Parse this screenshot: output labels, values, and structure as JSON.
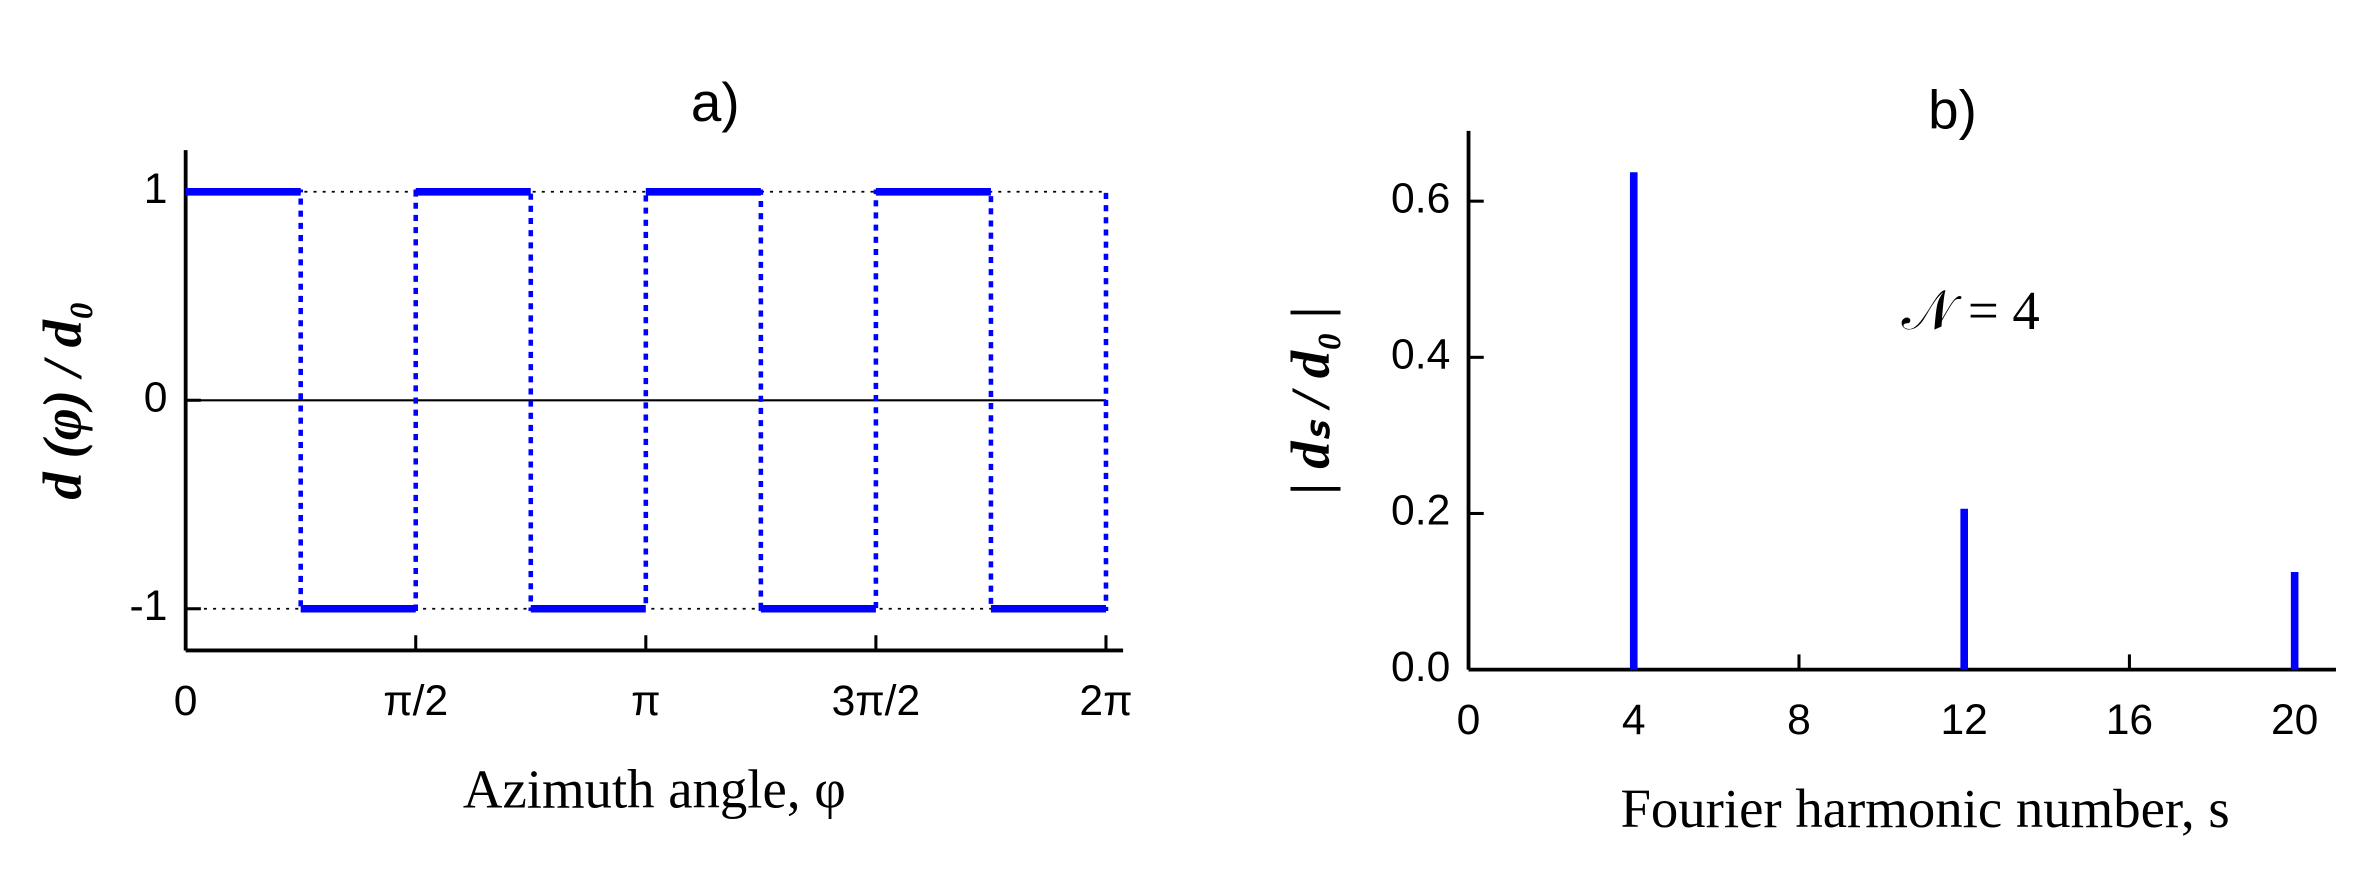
{
  "chart_data": [
    {
      "type": "line",
      "title": "a)",
      "xlabel": "Azimuth angle, φ",
      "ylabel": "d (φ) / d₀",
      "x": [
        0,
        0.7854,
        0.7854,
        1.5708,
        1.5708,
        2.3562,
        2.3562,
        3.1416,
        3.1416,
        3.927,
        3.927,
        4.7124,
        4.7124,
        5.4978,
        5.4978,
        6.2832,
        6.2832
      ],
      "series": [
        {
          "color": "#0000ff",
          "values": [
            1,
            1,
            -1,
            -1,
            1,
            1,
            -1,
            -1,
            1,
            1,
            -1,
            -1,
            1,
            1,
            -1,
            -1,
            1
          ]
        }
      ],
      "xlim": [
        0,
        6.4
      ],
      "ylim": [
        -1.2,
        1.2
      ],
      "xticks": [
        0,
        {
          "value": 1.5708,
          "label": "π/2"
        },
        {
          "value": 3.1416,
          "label": "π"
        },
        {
          "value": 4.7124,
          "label": "3π/2"
        },
        {
          "value": 6.2832,
          "label": "2π"
        }
      ],
      "yticks": [
        -1,
        0,
        1
      ],
      "hlines": [
        {
          "value": 1,
          "style": "dotted"
        },
        {
          "value": 0,
          "style": "solid"
        },
        {
          "value": -1,
          "style": "dotted"
        }
      ]
    },
    {
      "type": "bar",
      "title": "b)",
      "xlabel": "Fourier harmonic number, s",
      "ylabel": "| dₛ / d₀ |",
      "annotation": "𝒩 = 4",
      "x": [
        4,
        12,
        20
      ],
      "series": [
        {
          "color": "#0000ff",
          "values": [
            0.637,
            0.206,
            0.125
          ]
        }
      ],
      "xlim": [
        0,
        21
      ],
      "ylim": [
        0,
        0.69
      ],
      "xticks": [
        0,
        4,
        8,
        12,
        16,
        20
      ],
      "yticks": [
        {
          "value": 0,
          "label": "0.0"
        },
        0.2,
        0.4,
        0.6
      ]
    }
  ]
}
